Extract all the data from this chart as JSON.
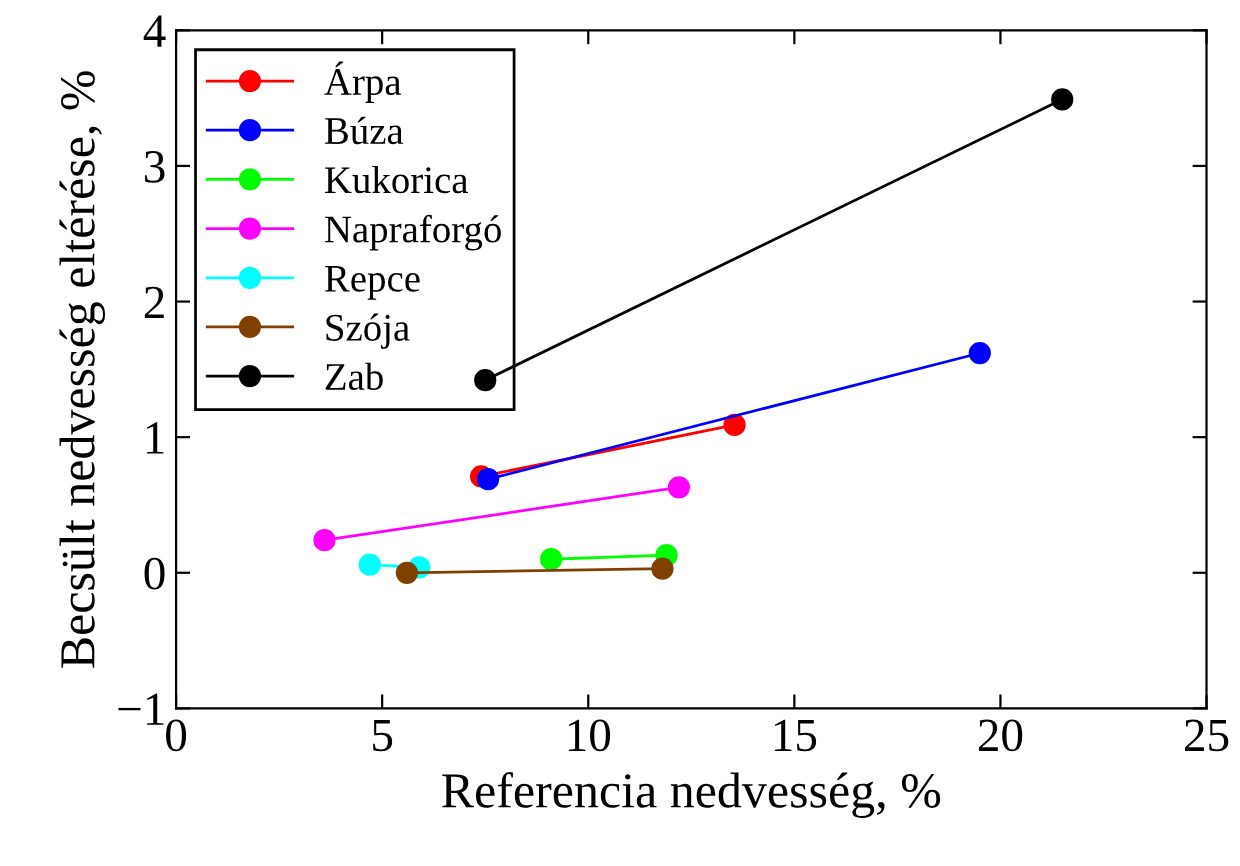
{
  "chart_data": {
    "type": "line",
    "xlabel": "Referencia nedvesség, %",
    "ylabel": "Becsült nedvesség eltérése, %",
    "xlim": [
      0,
      25
    ],
    "xticks": [
      0,
      5,
      10,
      15,
      20,
      25
    ],
    "ylim": [
      -1,
      4
    ],
    "yticks": [
      {
        "value": -1,
        "label": "−1"
      },
      0,
      1,
      2,
      3,
      4
    ],
    "marker": "circle",
    "line_style": "solid",
    "grid": false,
    "legend": "top left",
    "series": [
      {
        "name": "Árpa",
        "color": "#ff0000",
        "x": [
          7.4,
          13.55
        ],
        "values": [
          0.71,
          1.09
        ]
      },
      {
        "name": "Búza",
        "color": "#0000ff",
        "x": [
          7.57,
          19.5
        ],
        "values": [
          0.69,
          1.62
        ]
      },
      {
        "name": "Kukorica",
        "color": "#00ff00",
        "x": [
          9.1,
          11.9
        ],
        "values": [
          0.1,
          0.13
        ]
      },
      {
        "name": "Napraforgó",
        "color": "#ff00ff",
        "x": [
          3.6,
          12.2
        ],
        "values": [
          0.24,
          0.63
        ]
      },
      {
        "name": "Repce",
        "color": "#00ffff",
        "x": [
          4.7,
          5.9
        ],
        "values": [
          0.06,
          0.04
        ]
      },
      {
        "name": "Szója",
        "color": "#804000",
        "x": [
          5.6,
          11.8
        ],
        "values": [
          0.0,
          0.03
        ]
      },
      {
        "name": "Zab",
        "color": "#000000",
        "x": [
          7.5,
          21.5
        ],
        "values": [
          1.42,
          3.49
        ]
      }
    ]
  }
}
